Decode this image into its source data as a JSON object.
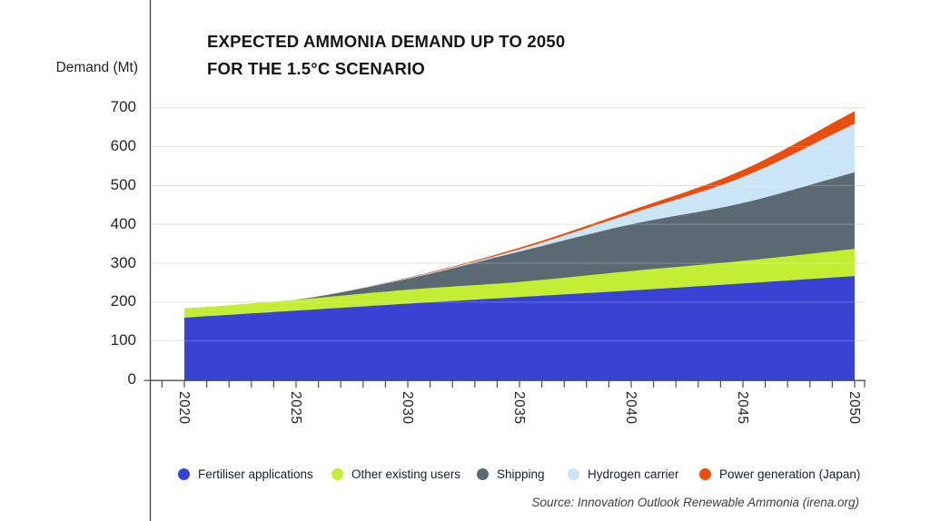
{
  "chart_data": {
    "type": "area",
    "stacked": true,
    "title_line1": "EXPECTED AMMONIA DEMAND UP TO 2050",
    "title_line2": "FOR THE 1.5°C SCENARIO",
    "ylabel": "Demand (Mt)",
    "x": [
      2020,
      2025,
      2030,
      2035,
      2040,
      2045,
      2050
    ],
    "minor_xticks_every_year": true,
    "yticks": [
      0,
      100,
      200,
      300,
      400,
      500,
      600,
      700
    ],
    "ylim": [
      0,
      700
    ],
    "grid": "horizontal",
    "legend_position": "bottom",
    "series": [
      {
        "name": "Fertiliser applications",
        "color": "#3843d4",
        "values": [
          160,
          178,
          196,
          213,
          230,
          248,
          267
        ]
      },
      {
        "name": "Other existing users",
        "color": "#c3ee33",
        "values": [
          23,
          28,
          36,
          39,
          50,
          58,
          70
        ]
      },
      {
        "name": "Shipping",
        "color": "#5b6a72",
        "values": [
          0,
          0,
          28,
          78,
          120,
          149,
          197
        ]
      },
      {
        "name": "Hydrogen carrier",
        "color": "#c9e5f6",
        "values": [
          0,
          0,
          2,
          6,
          28,
          67,
          125
        ]
      },
      {
        "name": "Power generation (Japan)",
        "color": "#e94e10",
        "values": [
          0,
          0,
          1,
          4,
          8,
          18,
          32
        ]
      }
    ],
    "totals_by_x": [
      183,
      206,
      263,
      340,
      436,
      540,
      691
    ],
    "source": "Source: Innovation Outlook Renewable Ammonia (irena.org)"
  }
}
